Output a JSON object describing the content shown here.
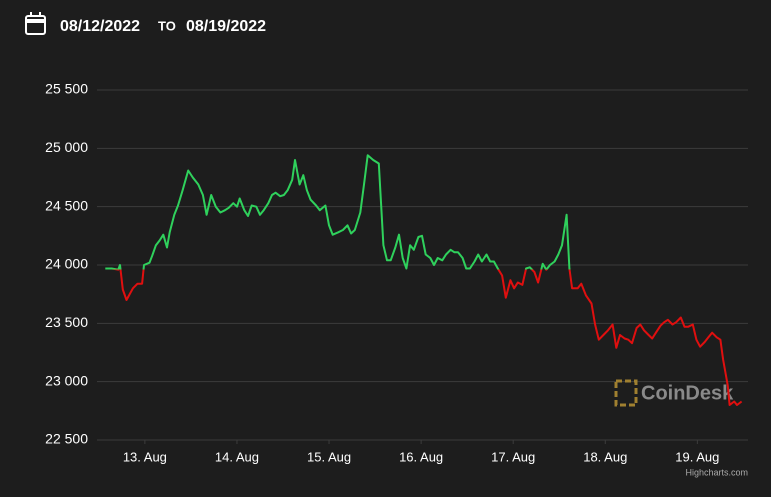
{
  "header": {
    "from": "08/12/2022",
    "separator": "TO",
    "to": "08/19/2022"
  },
  "chart_data": {
    "type": "line",
    "x": [
      12.57,
      12.64,
      12.71,
      12.73,
      12.76,
      12.8,
      12.87,
      12.92,
      12.97,
      12.99,
      13.05,
      13.08,
      13.12,
      13.16,
      13.2,
      13.24,
      13.27,
      13.32,
      13.36,
      13.41,
      13.47,
      13.52,
      13.58,
      13.63,
      13.67,
      13.72,
      13.77,
      13.82,
      13.87,
      13.91,
      13.96,
      14.0,
      14.03,
      14.08,
      14.12,
      14.16,
      14.21,
      14.25,
      14.29,
      14.34,
      14.38,
      14.42,
      14.47,
      14.51,
      14.55,
      14.6,
      14.63,
      14.68,
      14.72,
      14.76,
      14.8,
      14.86,
      14.9,
      14.96,
      15.0,
      15.04,
      15.1,
      15.15,
      15.2,
      15.24,
      15.28,
      15.34,
      15.38,
      15.42,
      15.48,
      15.54,
      15.59,
      15.63,
      15.67,
      15.72,
      15.76,
      15.8,
      15.84,
      15.88,
      15.92,
      15.97,
      16.01,
      16.05,
      16.1,
      16.14,
      16.18,
      16.23,
      16.27,
      16.32,
      16.36,
      16.4,
      16.45,
      16.49,
      16.53,
      16.58,
      16.62,
      16.66,
      16.71,
      16.75,
      16.79,
      16.84,
      16.88,
      16.92,
      16.97,
      17.01,
      17.05,
      17.1,
      17.14,
      17.18,
      17.23,
      17.27,
      17.32,
      17.36,
      17.4,
      17.45,
      17.49,
      17.53,
      17.58,
      17.61,
      17.64,
      17.7,
      17.74,
      17.79,
      17.85,
      17.89,
      17.93,
      17.98,
      18.03,
      18.08,
      18.12,
      18.16,
      18.21,
      18.25,
      18.29,
      18.34,
      18.38,
      18.42,
      18.47,
      18.51,
      18.55,
      18.6,
      18.64,
      18.68,
      18.73,
      18.77,
      18.82,
      18.86,
      18.9,
      18.95,
      18.99,
      19.03,
      19.08,
      19.12,
      19.16,
      19.21,
      19.25,
      19.28,
      19.33,
      19.35,
      19.4,
      19.43,
      19.48
    ],
    "values": [
      23970,
      23970,
      23960,
      24000,
      23790,
      23700,
      23800,
      23840,
      23840,
      24000,
      24020,
      24080,
      24170,
      24210,
      24260,
      24150,
      24280,
      24430,
      24510,
      24640,
      24810,
      24750,
      24690,
      24600,
      24430,
      24600,
      24500,
      24450,
      24470,
      24490,
      24530,
      24500,
      24570,
      24470,
      24420,
      24510,
      24500,
      24430,
      24470,
      24530,
      24600,
      24620,
      24590,
      24600,
      24640,
      24730,
      24900,
      24690,
      24770,
      24640,
      24560,
      24510,
      24470,
      24510,
      24340,
      24260,
      24280,
      24300,
      24340,
      24270,
      24300,
      24450,
      24690,
      24940,
      24900,
      24870,
      24170,
      24040,
      24040,
      24150,
      24260,
      24060,
      23970,
      24170,
      24130,
      24240,
      24250,
      24090,
      24060,
      24000,
      24060,
      24040,
      24090,
      24130,
      24110,
      24110,
      24060,
      23970,
      23970,
      24030,
      24090,
      24030,
      24090,
      24030,
      24030,
      23960,
      23910,
      23720,
      23870,
      23800,
      23850,
      23830,
      23970,
      23980,
      23940,
      23850,
      24010,
      23960,
      24000,
      24030,
      24090,
      24170,
      24430,
      23970,
      23800,
      23800,
      23840,
      23740,
      23670,
      23490,
      23360,
      23400,
      23440,
      23490,
      23290,
      23400,
      23370,
      23360,
      23330,
      23460,
      23490,
      23440,
      23400,
      23370,
      23420,
      23480,
      23510,
      23530,
      23490,
      23510,
      23550,
      23470,
      23470,
      23490,
      23360,
      23300,
      23340,
      23380,
      23420,
      23380,
      23360,
      23190,
      22970,
      22800,
      22830,
      22800,
      22830
    ],
    "threshold": 23960,
    "color_above": "#2fd15c",
    "color_below": "#e00f0f",
    "xlim": [
      12.48,
      19.55
    ],
    "xticks": [
      {
        "value": 13,
        "label": "13. Aug"
      },
      {
        "value": 14,
        "label": "14. Aug"
      },
      {
        "value": 15,
        "label": "15. Aug"
      },
      {
        "value": 16,
        "label": "16. Aug"
      },
      {
        "value": 17,
        "label": "17. Aug"
      },
      {
        "value": 18,
        "label": "18. Aug"
      },
      {
        "value": 19,
        "label": "19. Aug"
      }
    ],
    "ylim": [
      22500,
      25500
    ],
    "yticks": [
      {
        "value": 22500,
        "label": "22 500"
      },
      {
        "value": 23000,
        "label": "23 000"
      },
      {
        "value": 23500,
        "label": "23 500"
      },
      {
        "value": 24000,
        "label": "24 000"
      },
      {
        "value": 24500,
        "label": "24 500"
      },
      {
        "value": 25000,
        "label": "25 000"
      },
      {
        "value": 25500,
        "label": "25 500"
      }
    ],
    "grid": true,
    "watermark": "CoinDesk",
    "credits": "Highcharts.com"
  }
}
